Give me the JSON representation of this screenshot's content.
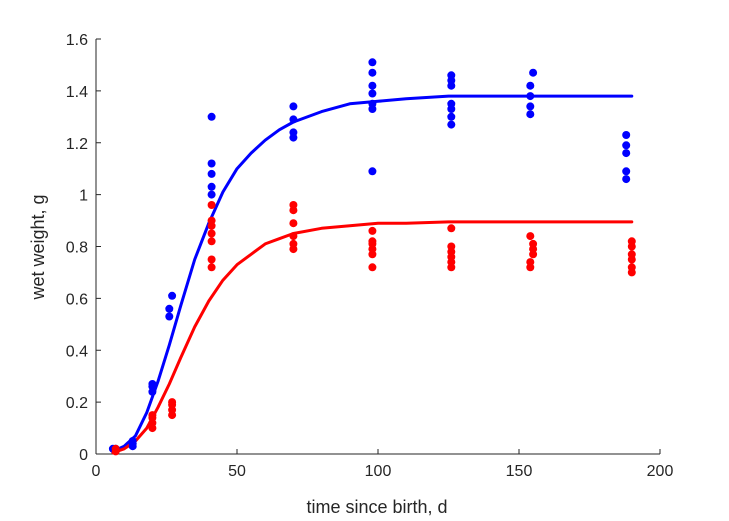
{
  "chart_data": {
    "type": "scatter",
    "xlabel": "time since birth, d",
    "ylabel": "wet weight, g",
    "xlim": [
      0,
      200
    ],
    "ylim": [
      0,
      1.6
    ],
    "xticks": [
      0,
      50,
      100,
      150,
      200
    ],
    "xtick_labels": [
      "0",
      "50",
      "100",
      "150",
      "200"
    ],
    "yticks": [
      0,
      0.2,
      0.4,
      0.6,
      0.8,
      1.0,
      1.2,
      1.4,
      1.6
    ],
    "ytick_labels": [
      "0",
      "0.2",
      "0.4",
      "0.6",
      "0.8",
      "1",
      "1.2",
      "1.4",
      "1.6"
    ],
    "grid": false,
    "legend": "none",
    "series": [
      {
        "color": "#0000ff",
        "points": [
          [
            6,
            0.02
          ],
          [
            7,
            0.02
          ],
          [
            13,
            0.03
          ],
          [
            13,
            0.04
          ],
          [
            13,
            0.05
          ],
          [
            20,
            0.24
          ],
          [
            20,
            0.26
          ],
          [
            20,
            0.27
          ],
          [
            26,
            0.53
          ],
          [
            26,
            0.56
          ],
          [
            27,
            0.61
          ],
          [
            41,
            1.0
          ],
          [
            41,
            1.03
          ],
          [
            41,
            1.08
          ],
          [
            41,
            1.12
          ],
          [
            41,
            1.3
          ],
          [
            70,
            1.22
          ],
          [
            70,
            1.24
          ],
          [
            70,
            1.29
          ],
          [
            70,
            1.34
          ],
          [
            98,
            1.09
          ],
          [
            98,
            1.33
          ],
          [
            98,
            1.35
          ],
          [
            98,
            1.39
          ],
          [
            98,
            1.42
          ],
          [
            98,
            1.47
          ],
          [
            98,
            1.51
          ],
          [
            126,
            1.27
          ],
          [
            126,
            1.3
          ],
          [
            126,
            1.33
          ],
          [
            126,
            1.35
          ],
          [
            126,
            1.42
          ],
          [
            126,
            1.44
          ],
          [
            126,
            1.46
          ],
          [
            154,
            1.31
          ],
          [
            154,
            1.34
          ],
          [
            154,
            1.38
          ],
          [
            154,
            1.42
          ],
          [
            155,
            1.47
          ],
          [
            188,
            1.06
          ],
          [
            188,
            1.09
          ],
          [
            188,
            1.16
          ],
          [
            188,
            1.19
          ],
          [
            188,
            1.23
          ]
        ],
        "curve": [
          [
            6,
            0.01
          ],
          [
            10,
            0.03
          ],
          [
            14,
            0.07
          ],
          [
            18,
            0.16
          ],
          [
            22,
            0.28
          ],
          [
            26,
            0.42
          ],
          [
            30,
            0.57
          ],
          [
            35,
            0.75
          ],
          [
            40,
            0.89
          ],
          [
            45,
            1.01
          ],
          [
            50,
            1.1
          ],
          [
            55,
            1.16
          ],
          [
            60,
            1.21
          ],
          [
            65,
            1.25
          ],
          [
            70,
            1.28
          ],
          [
            80,
            1.32
          ],
          [
            90,
            1.35
          ],
          [
            100,
            1.36
          ],
          [
            110,
            1.37
          ],
          [
            125,
            1.38
          ],
          [
            150,
            1.38
          ],
          [
            175,
            1.38
          ],
          [
            190,
            1.38
          ]
        ]
      },
      {
        "color": "#ff0000",
        "points": [
          [
            7,
            0.01
          ],
          [
            7,
            0.02
          ],
          [
            20,
            0.1
          ],
          [
            20,
            0.12
          ],
          [
            20,
            0.14
          ],
          [
            20,
            0.15
          ],
          [
            27,
            0.15
          ],
          [
            27,
            0.17
          ],
          [
            27,
            0.19
          ],
          [
            27,
            0.2
          ],
          [
            41,
            0.72
          ],
          [
            41,
            0.75
          ],
          [
            41,
            0.82
          ],
          [
            41,
            0.85
          ],
          [
            41,
            0.88
          ],
          [
            41,
            0.9
          ],
          [
            41,
            0.96
          ],
          [
            70,
            0.79
          ],
          [
            70,
            0.81
          ],
          [
            70,
            0.84
          ],
          [
            70,
            0.89
          ],
          [
            70,
            0.94
          ],
          [
            70,
            0.96
          ],
          [
            98,
            0.72
          ],
          [
            98,
            0.77
          ],
          [
            98,
            0.79
          ],
          [
            98,
            0.81
          ],
          [
            98,
            0.82
          ],
          [
            98,
            0.86
          ],
          [
            126,
            0.72
          ],
          [
            126,
            0.74
          ],
          [
            126,
            0.76
          ],
          [
            126,
            0.78
          ],
          [
            126,
            0.8
          ],
          [
            126,
            0.87
          ],
          [
            154,
            0.72
          ],
          [
            154,
            0.74
          ],
          [
            155,
            0.77
          ],
          [
            155,
            0.79
          ],
          [
            155,
            0.81
          ],
          [
            154,
            0.84
          ],
          [
            190,
            0.7
          ],
          [
            190,
            0.72
          ],
          [
            190,
            0.75
          ],
          [
            190,
            0.77
          ],
          [
            190,
            0.8
          ],
          [
            190,
            0.82
          ]
        ],
        "curve": [
          [
            6,
            0.005
          ],
          [
            10,
            0.02
          ],
          [
            14,
            0.05
          ],
          [
            18,
            0.1
          ],
          [
            22,
            0.18
          ],
          [
            26,
            0.27
          ],
          [
            30,
            0.37
          ],
          [
            35,
            0.49
          ],
          [
            40,
            0.59
          ],
          [
            45,
            0.67
          ],
          [
            50,
            0.73
          ],
          [
            55,
            0.77
          ],
          [
            60,
            0.81
          ],
          [
            65,
            0.83
          ],
          [
            70,
            0.85
          ],
          [
            80,
            0.87
          ],
          [
            90,
            0.88
          ],
          [
            100,
            0.89
          ],
          [
            110,
            0.89
          ],
          [
            125,
            0.895
          ],
          [
            150,
            0.895
          ],
          [
            175,
            0.895
          ],
          [
            190,
            0.895
          ]
        ]
      }
    ]
  }
}
